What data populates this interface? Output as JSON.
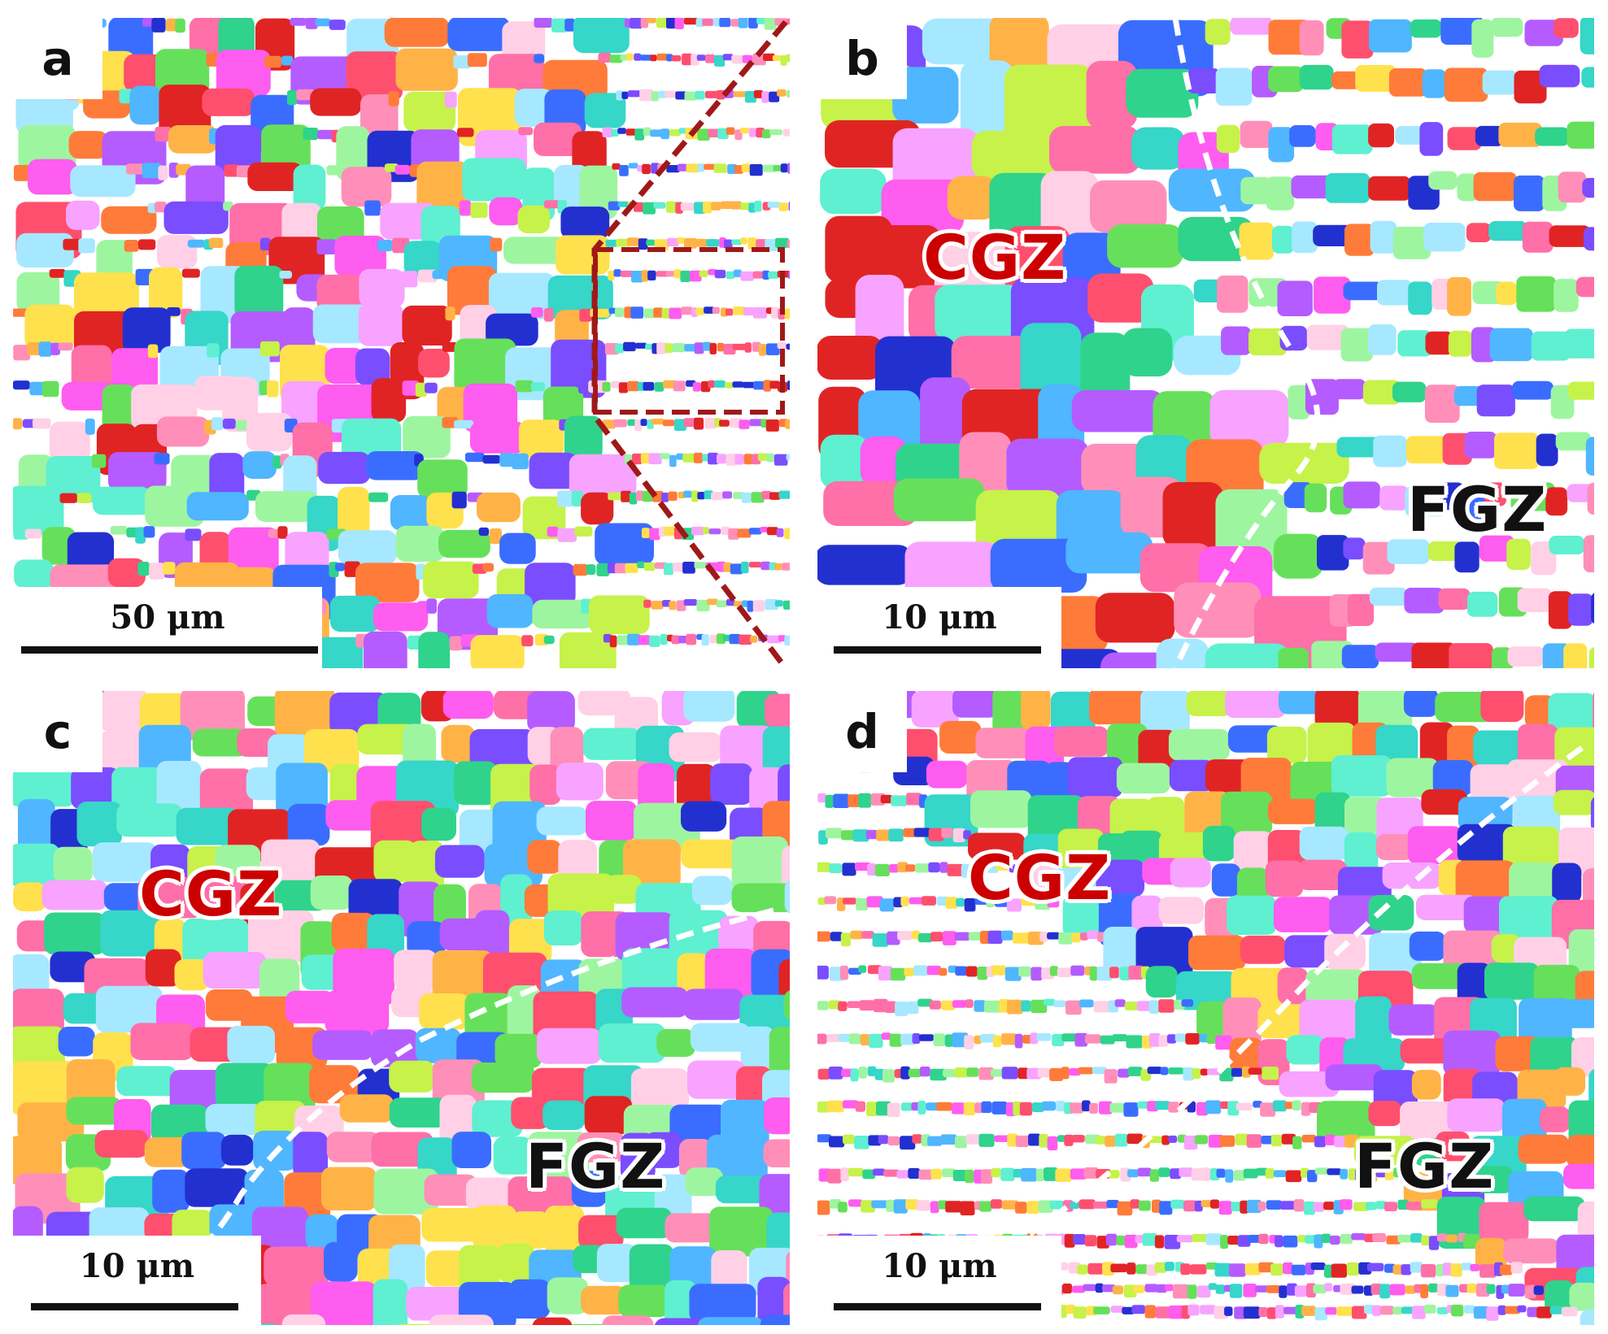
{
  "panels": [
    {
      "id": "a",
      "label": "a",
      "scale_bar": "50 μm",
      "zones": []
    },
    {
      "id": "b",
      "label": "b",
      "scale_bar": "10 μm",
      "zones": [
        "CGZ",
        "FGZ"
      ]
    },
    {
      "id": "c",
      "label": "c",
      "scale_bar": "10 μm",
      "zones": [
        "CGZ",
        "FGZ"
      ]
    },
    {
      "id": "d",
      "label": "d",
      "scale_bar": "10 μm",
      "zones": [
        "CGZ",
        "FGZ"
      ]
    }
  ],
  "colors": {
    "boundary_a": "#a01818",
    "boundary_white": "#ffffff",
    "cgz_text": "#cc0000",
    "fgz_text": "#111111"
  }
}
